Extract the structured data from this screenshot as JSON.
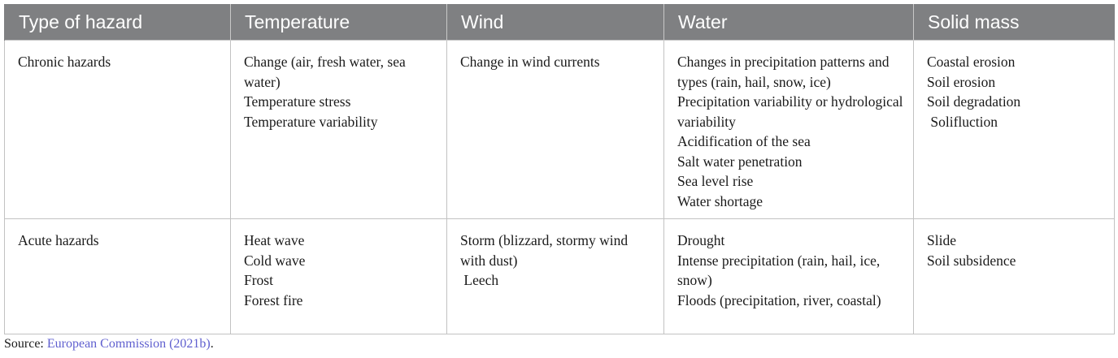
{
  "table": {
    "headers": [
      "Type of hazard",
      "Temperature",
      "Wind",
      "Water",
      "Solid mass"
    ],
    "rows": [
      {
        "type": "Chronic hazards",
        "temperature": [
          "Change (air, fresh water, sea water)",
          "Temperature stress",
          "Temperature variability"
        ],
        "wind": [
          "Change in wind currents"
        ],
        "water": [
          "Changes in precipitation patterns and types (rain, hail, snow, ice)",
          "Precipitation variability or hydrological variability",
          "Acidification of the sea",
          "Salt water penetration",
          "Sea level rise",
          "Water shortage"
        ],
        "solid_mass": [
          "Coastal erosion",
          "Soil erosion",
          "Soil degradation",
          " Solifluction"
        ]
      },
      {
        "type": "Acute hazards",
        "temperature": [
          "Heat wave",
          "Cold wave",
          "Frost",
          "Forest fire"
        ],
        "wind": [
          "Storm (blizzard, stormy wind with dust)",
          " Leech"
        ],
        "water": [
          "Drought",
          "Intense precipitation (rain, hail, ice, snow)",
          "Floods (precipitation, river, coastal)"
        ],
        "solid_mass": [
          "Slide",
          "Soil subsidence"
        ]
      }
    ]
  },
  "source": {
    "label": "Source: ",
    "link_text": "European Commission (2021b)",
    "suffix": "."
  },
  "colors": {
    "header_bg": "#7f8082",
    "link": "#5f5fcf",
    "border": "#c2c2c2"
  }
}
